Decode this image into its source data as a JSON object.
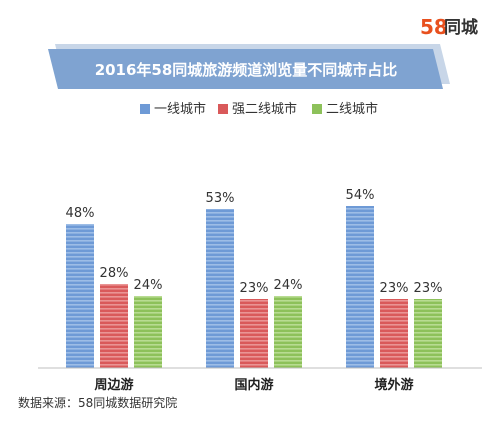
{
  "brand": {
    "number": "58",
    "text": "同城",
    "number_color": "#e8501e",
    "text_color": "#333333"
  },
  "banner": {
    "text_color": "#ffffff",
    "fill": "#7fa3d1",
    "shadow": "#c8d6e8"
  },
  "footer": {
    "source": "数据来源：58同城数据研究院"
  },
  "chart_data": {
    "type": "bar",
    "title": "2016年58同城旅游频道浏览量不同城市占比",
    "categories": [
      "周边游",
      "国内游",
      "境外游"
    ],
    "series": [
      {
        "name": "一线城市",
        "values": [
          48,
          53,
          54
        ],
        "labels": [
          "48%",
          "53%",
          "54%"
        ],
        "color": "#6e9ad6",
        "stripe": "#9dbde6"
      },
      {
        "name": "强二线城市",
        "values": [
          28,
          23,
          23
        ],
        "labels": [
          "28%",
          "23%",
          "23%"
        ],
        "color": "#d9595a",
        "stripe": "#ea9494"
      },
      {
        "name": "二线城市",
        "values": [
          24,
          24,
          23
        ],
        "labels": [
          "24%",
          "24%",
          "23%"
        ],
        "color": "#8dc15a",
        "stripe": "#b8dc92"
      }
    ],
    "ylim": [
      0,
      60
    ],
    "grid": false,
    "legend": "top-center",
    "xlabel": "",
    "ylabel": ""
  }
}
